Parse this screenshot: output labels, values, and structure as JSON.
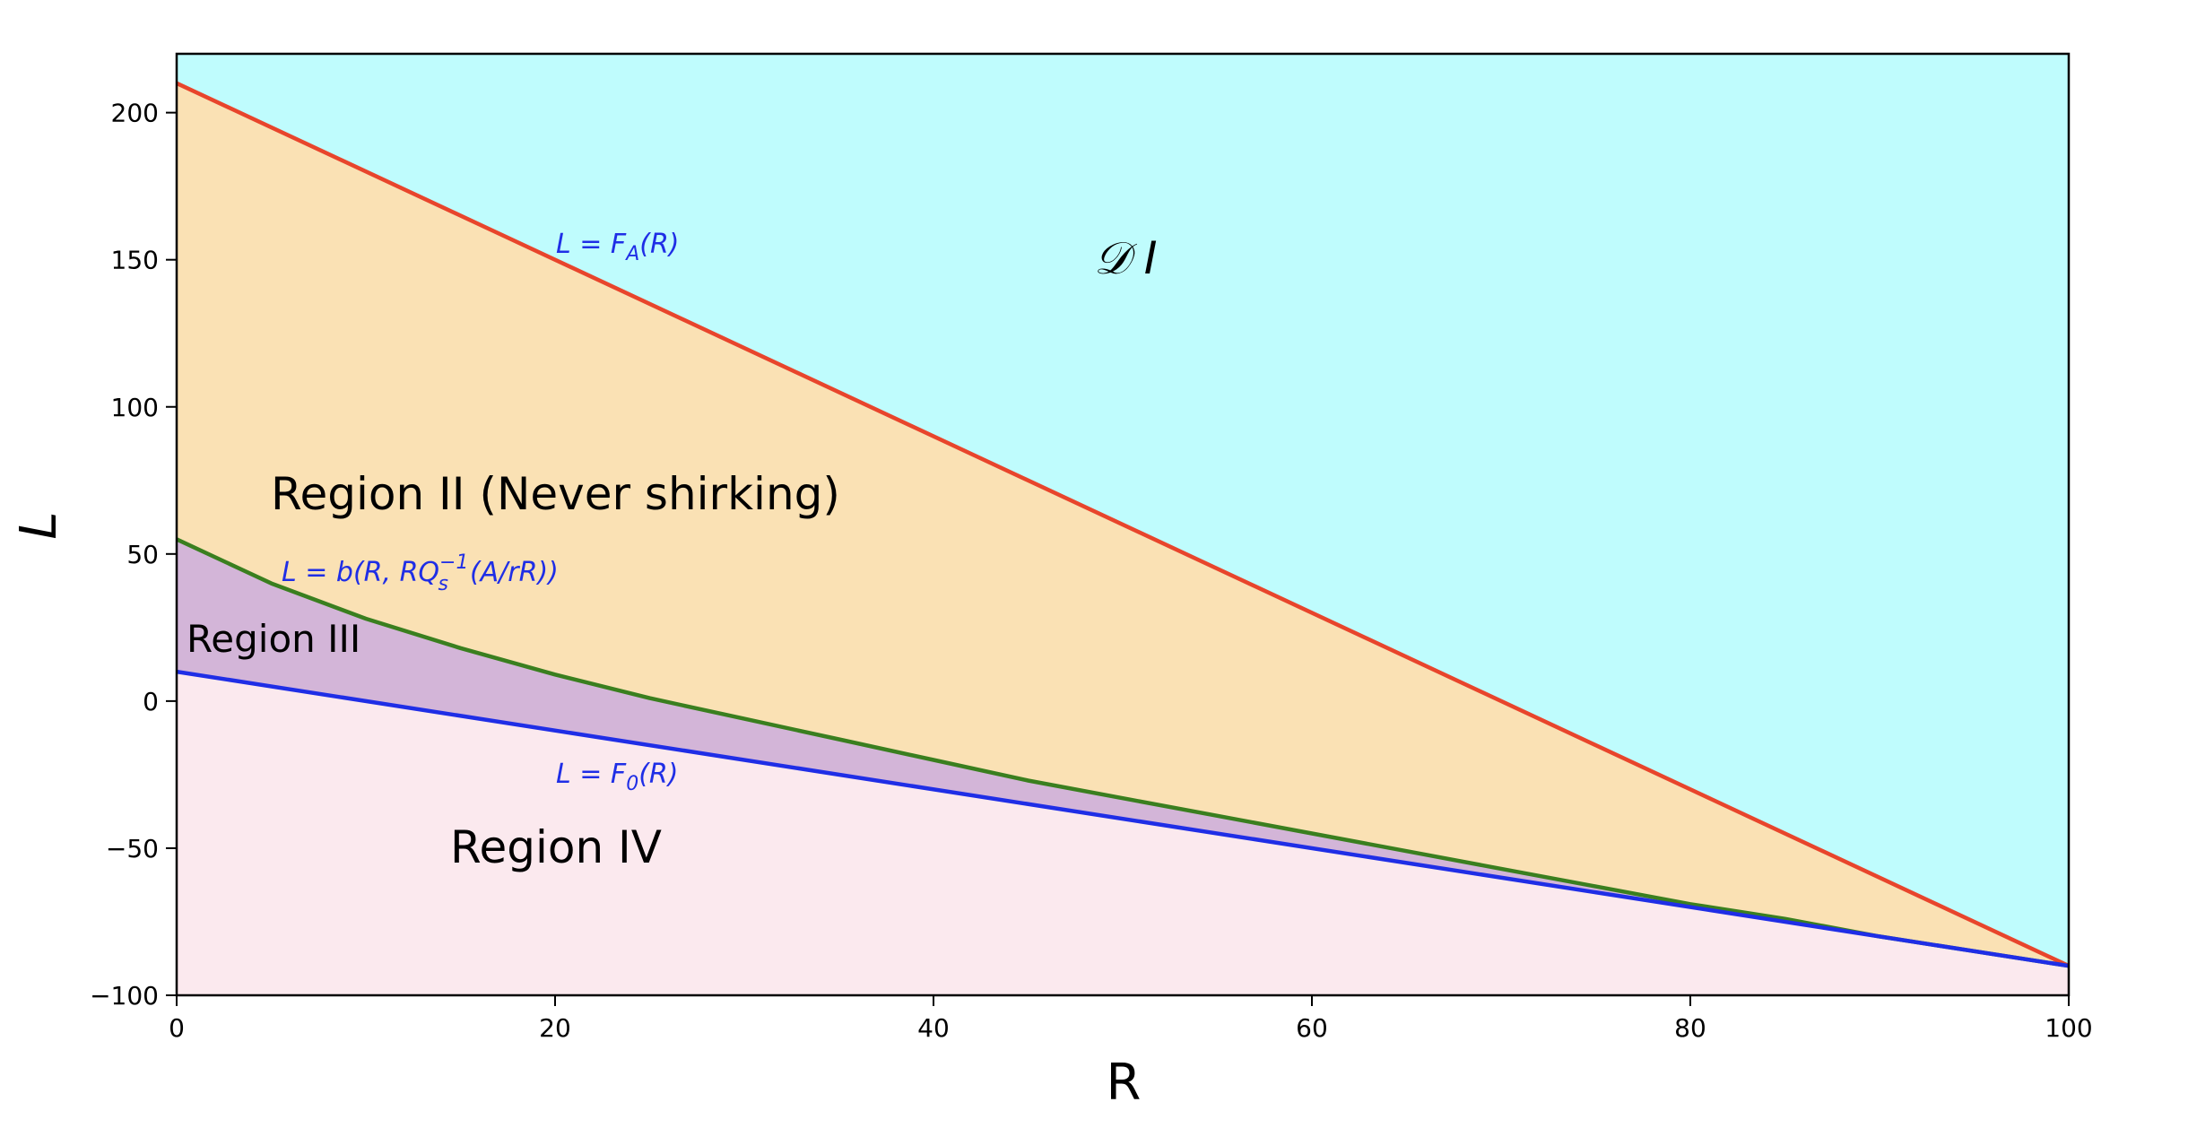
{
  "chart_data": {
    "type": "area",
    "title": "",
    "xlabel": "R",
    "ylabel": "L",
    "xlim": [
      0,
      100
    ],
    "ylim": [
      -100,
      220
    ],
    "grid": false,
    "x_ticks": [
      0,
      20,
      40,
      60,
      80,
      100
    ],
    "y_ticks": [
      -100,
      -50,
      0,
      50,
      100,
      150,
      200
    ],
    "x_tick_labels": [
      "0",
      "20",
      "40",
      "60",
      "80",
      "100"
    ],
    "y_tick_labels": [
      "−100",
      "−50",
      "0",
      "50",
      "100",
      "150",
      "200"
    ],
    "series": [
      {
        "label": "L = F_A(R)",
        "color": "#e8452c",
        "x": [
          0,
          100
        ],
        "y": [
          210,
          -90
        ]
      },
      {
        "label": "L = b(R, RQ_s^{-1}(A/rR))",
        "color": "#3a7f1f",
        "x": [
          0,
          5,
          10,
          15,
          20,
          25,
          30,
          35,
          40,
          45,
          50,
          55,
          60,
          65,
          70,
          75,
          80,
          85,
          90,
          95,
          100
        ],
        "y": [
          55,
          40,
          28,
          18,
          9,
          1,
          -6,
          -13,
          -20,
          -27,
          -33,
          -39,
          -45,
          -51,
          -57,
          -63,
          -69,
          -74,
          -80,
          -85,
          -90
        ]
      },
      {
        "label": "L = F_0(R)",
        "color": "#1f2ee6",
        "x": [
          0,
          100
        ],
        "y": [
          10,
          -90
        ]
      }
    ],
    "regions": [
      {
        "label": "𝒟 I",
        "color": "#bffcfd"
      },
      {
        "label": "Region II (Never shirking)",
        "color": "#fae1b4"
      },
      {
        "label": "Region III",
        "color": "#d3b5d8"
      },
      {
        "label": "Region IV",
        "color": "#fbe9ee"
      }
    ],
    "annotations": [
      {
        "text_main": "L = F",
        "text_sub": "A",
        "text_tail": "(R)"
      },
      {
        "text_main": "L = F",
        "text_sub": "0",
        "text_tail": "(R)"
      },
      {
        "text_main": "L = b(R, RQ",
        "text_sub": "s",
        "text_sup": "−1",
        "text_tail": "(A/rR))"
      }
    ]
  }
}
